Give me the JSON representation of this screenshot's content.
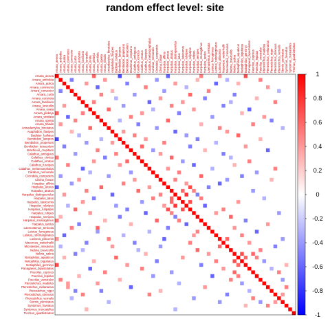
{
  "chart_data": {
    "type": "heatmap",
    "title": "random effect level: site",
    "labels": [
      "Amara_aenea",
      "Amara_anthobia",
      "Amara_aulica",
      "Amara_communis",
      "Amara_convexior",
      "Amara_curta",
      "Amara_eurynota",
      "Amara_familiaris",
      "Amara_lunicollis",
      "Amara_ovata",
      "Amara_plebeja",
      "Amara_similata",
      "Amara_spreta",
      "Amara_tibialis",
      "Anisodactylus_binotatus",
      "Asaphidion_flavipes",
      "Badister_bullatus",
      "Bembidion_lampros",
      "Bembidion_properans",
      "Bembidion_tetracolum",
      "Brachinus_crepitans",
      "Calathus_ambiguus",
      "Calathus_cinctus",
      "Calathus_erratus",
      "Calathus_fuscipes",
      "Calathus_melanocephalus",
      "Carabus_nemoralis",
      "Cicindela_campestris",
      "Clivina_fossor",
      "Harpalus_affinis",
      "Harpalus_anxius",
      "Harpalus_atratus",
      "Harpalus_distinguendus",
      "Harpalus_latus",
      "Harpalus_luteicornis",
      "Harpalus_rubripes",
      "Harpalus_rufipalpis",
      "Harpalus_rufipes",
      "Harpalus_serripes",
      "Harpalus_smaragdinus",
      "Harpalus_tardus",
      "Laemostenus_terricola",
      "Leistus_ferrugineus",
      "Leistus_rufomarginatus",
      "Loricera_pilicornis",
      "Masoreus_wetterhallii",
      "Microlestes_minutulus",
      "Nebria_brevicollis",
      "Nebria_salina",
      "Notiophilus_aquaticus",
      "Notiophilus_biguttatus",
      "Notiophilus_germinyi",
      "Panagaeus_bipustulatus",
      "Poecilus_cupreus",
      "Poecilus_lepidus",
      "Poecilus_versicolor",
      "Pterostichus_madidus",
      "Pterostichus_melanarius",
      "Pterostichus_niger",
      "Pterostichus_strenuus",
      "Pterostichus_vernalis",
      "Stomis_pumicatus",
      "Syntomus_foveatus",
      "Syntomus_truncatellus",
      "Trechus_quadristriatus"
    ],
    "color_scale": {
      "min": -1,
      "max": 1,
      "low": "#0000ff",
      "mid": "#ffffff",
      "high": "#ff0000"
    },
    "colorbar_ticks": [
      1,
      0.8,
      0.6,
      0.4,
      0.2,
      0,
      -0.2,
      -0.4,
      -0.6,
      -0.8,
      -1
    ],
    "colorbar_tick_labels": [
      "1",
      "0.8",
      "0.6",
      "0.4",
      "0.2",
      "0",
      "-0.2",
      "-0.4",
      "-0.6",
      "-0.8",
      "-1"
    ],
    "diagonal_value": 1,
    "cells": [
      [
        1,
        11,
        0.6
      ],
      [
        1,
        18,
        -0.7
      ],
      [
        1,
        23,
        0.5
      ],
      [
        1,
        31,
        -0.6
      ],
      [
        1,
        40,
        0.5
      ],
      [
        1,
        45,
        0.4
      ],
      [
        1,
        52,
        0.7
      ],
      [
        2,
        5,
        -0.5
      ],
      [
        2,
        14,
        0.4
      ],
      [
        2,
        28,
        -0.4
      ],
      [
        2,
        39,
        0.3
      ],
      [
        2,
        47,
        -0.3
      ],
      [
        2,
        56,
        0.5
      ],
      [
        3,
        9,
        0.4
      ],
      [
        3,
        20,
        -0.5
      ],
      [
        3,
        33,
        0.4
      ],
      [
        3,
        44,
        -0.6
      ],
      [
        3,
        50,
        0.3
      ],
      [
        4,
        12,
        -0.6
      ],
      [
        4,
        25,
        0.5
      ],
      [
        4,
        36,
        -0.3
      ],
      [
        4,
        58,
        0.4
      ],
      [
        5,
        2,
        -0.5
      ],
      [
        5,
        16,
        0.3
      ],
      [
        5,
        30,
        -0.4
      ],
      [
        5,
        42,
        0.5
      ],
      [
        5,
        61,
        -0.3
      ],
      [
        6,
        13,
        0.5
      ],
      [
        6,
        22,
        -0.4
      ],
      [
        6,
        37,
        0.6
      ],
      [
        6,
        49,
        -0.5
      ],
      [
        7,
        17,
        -0.3
      ],
      [
        7,
        29,
        0.4
      ],
      [
        7,
        41,
        -0.5
      ],
      [
        7,
        55,
        0.3
      ],
      [
        8,
        11,
        0.5
      ],
      [
        8,
        26,
        -0.6
      ],
      [
        8,
        35,
        0.4
      ],
      [
        8,
        48,
        -0.3
      ],
      [
        8,
        60,
        0.5
      ],
      [
        9,
        3,
        0.4
      ],
      [
        9,
        19,
        -0.4
      ],
      [
        9,
        32,
        0.5
      ],
      [
        9,
        46,
        -0.5
      ],
      [
        10,
        15,
        0.6
      ],
      [
        10,
        27,
        -0.3
      ],
      [
        10,
        38,
        0.4
      ],
      [
        10,
        53,
        -0.6
      ],
      [
        11,
        1,
        0.6
      ],
      [
        11,
        8,
        0.5
      ],
      [
        11,
        24,
        0.4
      ],
      [
        11,
        34,
        -0.5
      ],
      [
        11,
        51,
        0.3
      ],
      [
        12,
        4,
        -0.6
      ],
      [
        12,
        21,
        0.5
      ],
      [
        12,
        43,
        -0.4
      ],
      [
        12,
        57,
        0.4
      ],
      [
        13,
        6,
        0.5
      ],
      [
        13,
        18,
        -0.3
      ],
      [
        13,
        31,
        0.6
      ],
      [
        13,
        59,
        -0.5
      ],
      [
        14,
        2,
        0.4
      ],
      [
        14,
        23,
        -0.5
      ],
      [
        14,
        40,
        0.3
      ],
      [
        14,
        54,
        0.5
      ],
      [
        15,
        10,
        0.6
      ],
      [
        15,
        28,
        -0.4
      ],
      [
        15,
        45,
        0.5
      ],
      [
        15,
        62,
        -0.3
      ],
      [
        16,
        5,
        0.3
      ],
      [
        16,
        19,
        0.4
      ],
      [
        16,
        33,
        -0.6
      ],
      [
        16,
        47,
        0.4
      ],
      [
        17,
        7,
        -0.3
      ],
      [
        17,
        22,
        0.5
      ],
      [
        17,
        36,
        -0.4
      ],
      [
        17,
        50,
        0.6
      ],
      [
        18,
        1,
        -0.7
      ],
      [
        18,
        13,
        -0.3
      ],
      [
        18,
        25,
        0.4
      ],
      [
        18,
        39,
        -0.5
      ],
      [
        18,
        56,
        0.3
      ],
      [
        19,
        9,
        -0.4
      ],
      [
        19,
        16,
        0.4
      ],
      [
        19,
        30,
        0.5
      ],
      [
        19,
        44,
        -0.3
      ],
      [
        20,
        3,
        -0.5
      ],
      [
        20,
        24,
        0.6
      ],
      [
        20,
        37,
        -0.5
      ],
      [
        20,
        52,
        0.4
      ],
      [
        21,
        12,
        0.5
      ],
      [
        21,
        27,
        -0.4
      ],
      [
        21,
        41,
        0.3
      ],
      [
        21,
        58,
        -0.6
      ],
      [
        22,
        6,
        -0.4
      ],
      [
        22,
        17,
        0.5
      ],
      [
        22,
        29,
        0.4
      ],
      [
        22,
        46,
        -0.5
      ],
      [
        23,
        1,
        0.5
      ],
      [
        23,
        14,
        -0.5
      ],
      [
        23,
        32,
        0.6
      ],
      [
        23,
        48,
        -0.3
      ],
      [
        24,
        11,
        0.4
      ],
      [
        24,
        20,
        0.6
      ],
      [
        24,
        35,
        -0.4
      ],
      [
        24,
        53,
        0.5
      ],
      [
        25,
        4,
        0.5
      ],
      [
        25,
        18,
        0.4
      ],
      [
        25,
        38,
        -0.6
      ],
      [
        25,
        49,
        0.3
      ],
      [
        26,
        8,
        -0.6
      ],
      [
        26,
        31,
        0.4
      ],
      [
        26,
        43,
        -0.3
      ],
      [
        26,
        60,
        0.5
      ],
      [
        27,
        10,
        -0.3
      ],
      [
        27,
        21,
        -0.4
      ],
      [
        27,
        34,
        0.5
      ],
      [
        27,
        55,
        -0.4
      ],
      [
        28,
        2,
        -0.4
      ],
      [
        28,
        15,
        -0.4
      ],
      [
        28,
        40,
        0.6
      ],
      [
        28,
        51,
        -0.5
      ],
      [
        29,
        7,
        0.4
      ],
      [
        29,
        22,
        0.4
      ],
      [
        29,
        33,
        0.5
      ],
      [
        29,
        47,
        -0.4
      ],
      [
        29,
        59,
        0.3
      ],
      [
        30,
        5,
        -0.4
      ],
      [
        30,
        19,
        0.5
      ],
      [
        30,
        36,
        0.4
      ],
      [
        30,
        45,
        -0.6
      ],
      [
        31,
        1,
        -0.6
      ],
      [
        31,
        13,
        0.6
      ],
      [
        31,
        26,
        0.4
      ],
      [
        31,
        37,
        0.7
      ],
      [
        31,
        42,
        -0.5
      ],
      [
        32,
        9,
        0.5
      ],
      [
        32,
        23,
        0.6
      ],
      [
        32,
        35,
        0.6
      ],
      [
        32,
        38,
        0.5
      ],
      [
        32,
        54,
        -0.4
      ],
      [
        33,
        3,
        0.4
      ],
      [
        33,
        16,
        -0.6
      ],
      [
        33,
        29,
        0.5
      ],
      [
        33,
        36,
        0.8
      ],
      [
        33,
        39,
        -0.5
      ],
      [
        34,
        11,
        -0.5
      ],
      [
        34,
        27,
        0.5
      ],
      [
        34,
        32,
        0.6
      ],
      [
        34,
        40,
        0.5
      ],
      [
        34,
        57,
        -0.3
      ],
      [
        35,
        8,
        0.4
      ],
      [
        35,
        24,
        -0.4
      ],
      [
        35,
        32,
        0.6
      ],
      [
        35,
        37,
        0.7
      ],
      [
        35,
        50,
        0.4
      ],
      [
        36,
        4,
        -0.3
      ],
      [
        36,
        17,
        -0.4
      ],
      [
        36,
        30,
        0.4
      ],
      [
        36,
        33,
        0.8
      ],
      [
        36,
        41,
        -0.6
      ],
      [
        37,
        6,
        0.6
      ],
      [
        37,
        20,
        -0.5
      ],
      [
        37,
        31,
        0.7
      ],
      [
        37,
        35,
        0.7
      ],
      [
        37,
        46,
        0.5
      ],
      [
        38,
        10,
        0.4
      ],
      [
        38,
        25,
        -0.6
      ],
      [
        38,
        32,
        0.5
      ],
      [
        38,
        44,
        0.4
      ],
      [
        38,
        61,
        -0.4
      ],
      [
        39,
        2,
        0.3
      ],
      [
        39,
        18,
        -0.5
      ],
      [
        39,
        33,
        -0.5
      ],
      [
        39,
        48,
        0.6
      ],
      [
        40,
        1,
        0.5
      ],
      [
        40,
        14,
        0.3
      ],
      [
        40,
        28,
        0.6
      ],
      [
        40,
        34,
        0.5
      ],
      [
        40,
        52,
        -0.5
      ],
      [
        41,
        7,
        -0.5
      ],
      [
        41,
        21,
        0.3
      ],
      [
        41,
        36,
        -0.6
      ],
      [
        41,
        58,
        0.4
      ],
      [
        42,
        5,
        0.5
      ],
      [
        42,
        12,
        0.6
      ],
      [
        42,
        31,
        -0.5
      ],
      [
        42,
        49,
        0.4
      ],
      [
        43,
        12,
        -0.4
      ],
      [
        43,
        26,
        -0.3
      ],
      [
        43,
        39,
        0.5
      ],
      [
        43,
        55,
        -0.6
      ],
      [
        44,
        3,
        -0.6
      ],
      [
        44,
        19,
        -0.3
      ],
      [
        44,
        38,
        0.4
      ],
      [
        44,
        51,
        0.5
      ],
      [
        45,
        1,
        0.4
      ],
      [
        45,
        15,
        0.5
      ],
      [
        45,
        30,
        -0.6
      ],
      [
        45,
        47,
        0.6
      ],
      [
        45,
        62,
        -0.4
      ],
      [
        46,
        9,
        -0.5
      ],
      [
        46,
        22,
        -0.5
      ],
      [
        46,
        37,
        0.5
      ],
      [
        46,
        53,
        0.4
      ],
      [
        47,
        2,
        -0.3
      ],
      [
        47,
        16,
        0.4
      ],
      [
        47,
        29,
        -0.4
      ],
      [
        47,
        45,
        0.6
      ],
      [
        47,
        60,
        -0.5
      ],
      [
        48,
        8,
        -0.3
      ],
      [
        48,
        23,
        -0.3
      ],
      [
        48,
        39,
        0.6
      ],
      [
        48,
        56,
        0.5
      ],
      [
        49,
        6,
        -0.5
      ],
      [
        49,
        25,
        0.3
      ],
      [
        49,
        42,
        0.4
      ],
      [
        49,
        51,
        0.7
      ],
      [
        49,
        54,
        0.6
      ],
      [
        50,
        3,
        0.3
      ],
      [
        50,
        17,
        0.6
      ],
      [
        50,
        35,
        0.4
      ],
      [
        50,
        52,
        0.6
      ],
      [
        50,
        55,
        0.5
      ],
      [
        51,
        11,
        0.3
      ],
      [
        51,
        28,
        -0.5
      ],
      [
        51,
        44,
        0.5
      ],
      [
        51,
        49,
        0.7
      ],
      [
        51,
        57,
        -0.4
      ],
      [
        52,
        1,
        0.7
      ],
      [
        52,
        20,
        0.4
      ],
      [
        52,
        40,
        -0.5
      ],
      [
        52,
        50,
        0.6
      ],
      [
        52,
        63,
        0.3
      ],
      [
        53,
        10,
        -0.6
      ],
      [
        53,
        24,
        0.5
      ],
      [
        53,
        46,
        0.4
      ],
      [
        53,
        59,
        -0.3
      ],
      [
        54,
        14,
        0.5
      ],
      [
        54,
        32,
        -0.4
      ],
      [
        54,
        49,
        0.6
      ],
      [
        54,
        61,
        0.5
      ],
      [
        55,
        7,
        0.3
      ],
      [
        55,
        27,
        -0.4
      ],
      [
        55,
        43,
        -0.6
      ],
      [
        55,
        50,
        0.5
      ],
      [
        56,
        2,
        0.5
      ],
      [
        56,
        18,
        0.3
      ],
      [
        56,
        48,
        0.5
      ],
      [
        56,
        62,
        -0.4
      ],
      [
        57,
        4,
        0.4
      ],
      [
        57,
        12,
        0.4
      ],
      [
        57,
        34,
        -0.3
      ],
      [
        57,
        51,
        -0.4
      ],
      [
        58,
        4,
        0.4
      ],
      [
        58,
        21,
        -0.6
      ],
      [
        58,
        41,
        0.4
      ],
      [
        58,
        63,
        0.5
      ],
      [
        59,
        6,
        -0.5
      ],
      [
        59,
        13,
        -0.5
      ],
      [
        59,
        29,
        0.3
      ],
      [
        59,
        53,
        -0.3
      ],
      [
        60,
        8,
        0.5
      ],
      [
        60,
        26,
        0.5
      ],
      [
        60,
        47,
        -0.5
      ],
      [
        60,
        62,
        0.4
      ],
      [
        61,
        5,
        -0.3
      ],
      [
        61,
        38,
        -0.4
      ],
      [
        61,
        54,
        0.5
      ],
      [
        62,
        15,
        -0.3
      ],
      [
        62,
        45,
        -0.4
      ],
      [
        62,
        56,
        -0.4
      ],
      [
        62,
        60,
        0.4
      ],
      [
        63,
        52,
        0.3
      ],
      [
        63,
        58,
        0.5
      ],
      [
        64,
        9,
        0.3
      ],
      [
        64,
        33,
        -0.3
      ]
    ]
  }
}
